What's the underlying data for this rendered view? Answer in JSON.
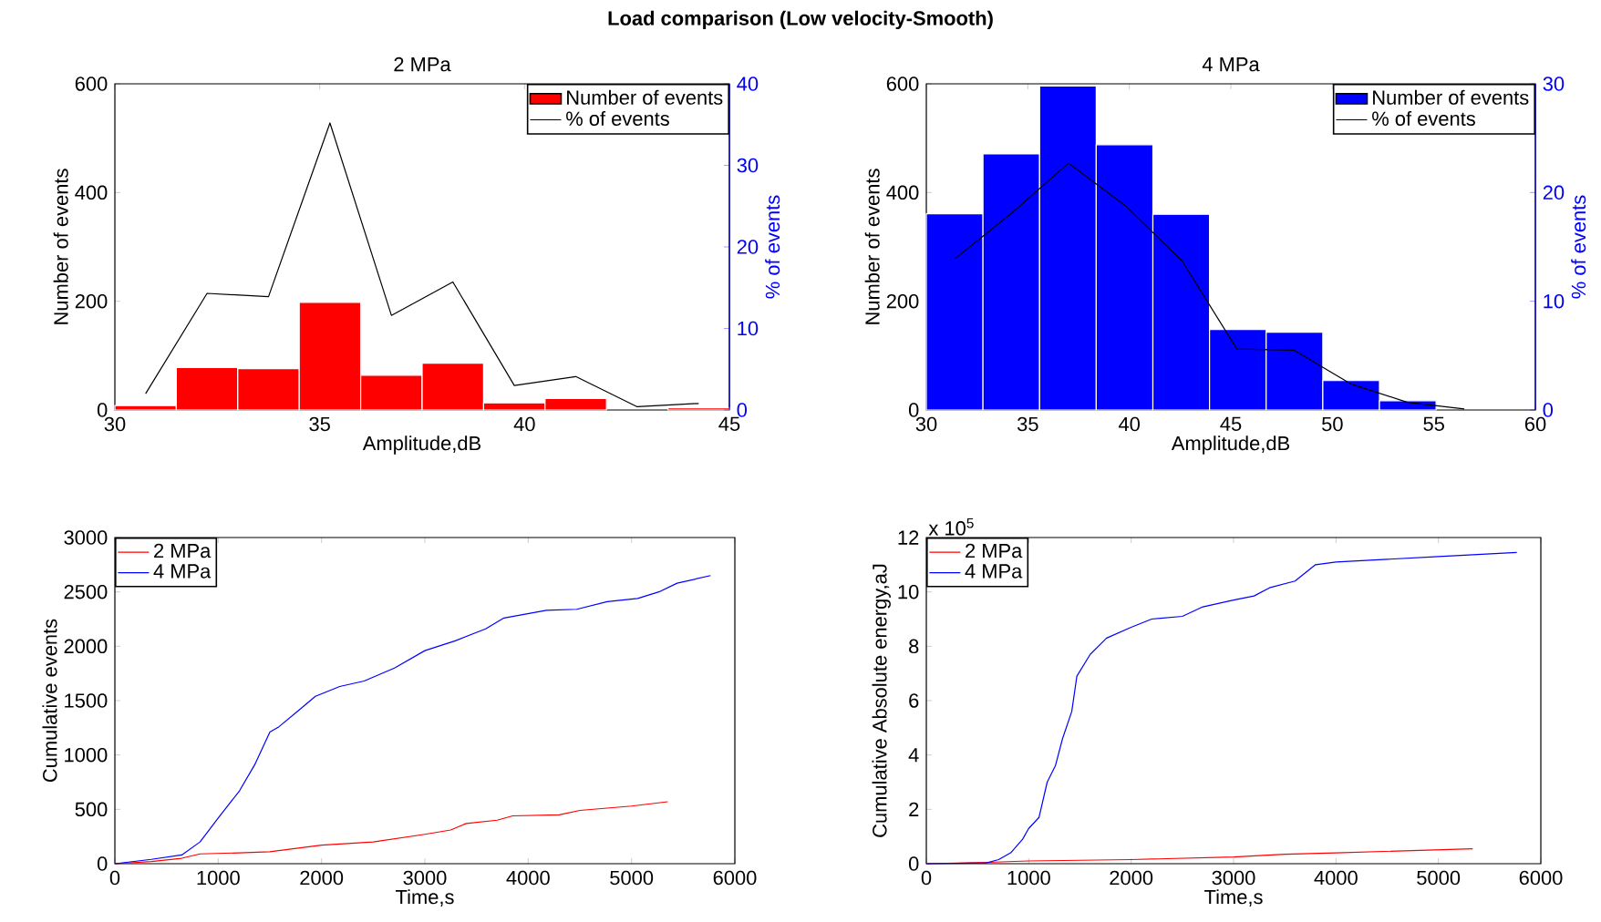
{
  "chart_data": [
    {
      "type": "histogram",
      "title": "2 MPa",
      "xlabel": "Amplitude,dB",
      "ylabel": "Number of events",
      "y2label": "% of events",
      "annotations": [
        "Load comparison (Low velocity-Smooth)"
      ],
      "bins": [
        30,
        31.5,
        33,
        34.5,
        36,
        37.5,
        39,
        40.5,
        42,
        43.5,
        45
      ],
      "xlim": [
        30,
        45
      ],
      "xticks": [
        30,
        35,
        40,
        45
      ],
      "ylim": [
        0,
        600
      ],
      "yticks": [
        0,
        200,
        400,
        600
      ],
      "y2lim": [
        0,
        40
      ],
      "y2ticks": [
        0,
        10,
        20,
        30,
        40
      ],
      "legend": "top right",
      "series": [
        {
          "name": "Number of events",
          "color": "#ff0000",
          "values": [
            8,
            78,
            76,
            198,
            64,
            86,
            13,
            21,
            null,
            4
          ]
        },
        {
          "name": "% of events",
          "type": "line",
          "axis": "y2",
          "color": "#000000",
          "x": [
            30.75,
            32.25,
            33.75,
            35.25,
            36.75,
            38.25,
            39.75,
            41.25,
            42.75,
            44.25
          ],
          "values": [
            2.0,
            14.3,
            13.9,
            35.2,
            11.6,
            15.7,
            3.0,
            4.1,
            0.4,
            0.8
          ]
        }
      ]
    },
    {
      "type": "histogram",
      "title": "4 MPa",
      "xlabel": "Amplitude,dB",
      "ylabel": "Number of events",
      "y2label": "% of events",
      "bins": [
        30,
        32.79,
        35.58,
        38.37,
        41.16,
        43.95,
        46.74,
        49.53,
        52.32,
        55.11,
        57.9
      ],
      "xlim": [
        30,
        60
      ],
      "xticks": [
        30,
        35,
        40,
        45,
        50,
        55,
        60
      ],
      "ylim": [
        0,
        600
      ],
      "yticks": [
        0,
        200,
        400,
        600
      ],
      "y2lim": [
        0,
        30
      ],
      "y2ticks": [
        0,
        10,
        20,
        30
      ],
      "legend": "top right",
      "series": [
        {
          "name": "Number of events",
          "color": "#0000ff",
          "values": [
            361,
            471,
            596,
            488,
            360,
            148,
            143,
            54,
            17,
            null
          ]
        },
        {
          "name": "% of events",
          "type": "line",
          "axis": "y2",
          "color": "#000000",
          "x": [
            31.4,
            34.2,
            37.0,
            39.8,
            42.6,
            45.3,
            48.1,
            50.9,
            53.7,
            56.5
          ],
          "values": [
            13.9,
            18.1,
            22.7,
            18.8,
            13.7,
            5.6,
            5.5,
            2.4,
            0.7,
            0.1
          ]
        }
      ]
    },
    {
      "type": "line",
      "xlabel": "Time,s",
      "ylabel": "Cumulative events",
      "xlim": [
        0,
        6000
      ],
      "xticks": [
        0,
        1000,
        2000,
        3000,
        4000,
        5000,
        6000
      ],
      "ylim": [
        0,
        3000
      ],
      "yticks": [
        0,
        500,
        1000,
        1500,
        2000,
        2500,
        3000
      ],
      "legend": "top left",
      "series": [
        {
          "name": "2 MPa",
          "color": "#ff0000",
          "x": [
            0,
            353,
            647,
            824,
            1200,
            1500,
            2000,
            2500,
            3000,
            3250,
            3400,
            3700,
            3850,
            4300,
            4500,
            5000,
            5350
          ],
          "values": [
            0,
            20,
            50,
            90,
            100,
            110,
            170,
            200,
            270,
            310,
            370,
            400,
            440,
            450,
            490,
            530,
            570
          ]
        },
        {
          "name": "4 MPa",
          "color": "#0000ff",
          "x": [
            0,
            353,
            647,
            824,
            1000,
            1206,
            1353,
            1500,
            1588,
            1765,
            1941,
            2176,
            2412,
            2706,
            3000,
            3294,
            3588,
            3765,
            4176,
            4470,
            4765,
            5059,
            5265,
            5441,
            5765
          ],
          "values": [
            0,
            40,
            80,
            200,
            420,
            670,
            910,
            1210,
            1260,
            1400,
            1540,
            1630,
            1680,
            1800,
            1960,
            2050,
            2160,
            2260,
            2330,
            2340,
            2410,
            2440,
            2500,
            2580,
            2650
          ]
        }
      ]
    },
    {
      "type": "line",
      "xlabel": "Time,s",
      "ylabel": "Cumulative Absolute energy,aJ",
      "annotations": [
        "x 10$^{5}$"
      ],
      "xlim": [
        0,
        6000
      ],
      "xticks": [
        0,
        1000,
        2000,
        3000,
        4000,
        5000,
        6000
      ],
      "ylim": [
        0,
        12
      ],
      "yticks": [
        0,
        2,
        4,
        6,
        8,
        10,
        12
      ],
      "legend": "top left",
      "series": [
        {
          "name": "2 MPa",
          "color": "#ff0000",
          "x": [
            0,
            600,
            1000,
            2000,
            3000,
            3500,
            4000,
            5335
          ],
          "values": [
            0,
            0.05,
            0.1,
            0.15,
            0.25,
            0.35,
            0.4,
            0.55
          ]
        },
        {
          "name": "4 MPa",
          "color": "#0000ff",
          "x": [
            0,
            588,
            706,
            824,
            940,
            1000,
            1100,
            1180,
            1260,
            1330,
            1420,
            1470,
            1600,
            1760,
            2000,
            2200,
            2500,
            2700,
            3000,
            3200,
            3350,
            3600,
            3800,
            4000,
            4500,
            5000,
            5765
          ],
          "values": [
            0,
            0.03,
            0.15,
            0.4,
            0.9,
            1.3,
            1.7,
            3.0,
            3.6,
            4.6,
            5.6,
            6.9,
            7.7,
            8.3,
            8.7,
            9.0,
            9.1,
            9.45,
            9.7,
            9.85,
            10.15,
            10.4,
            11.0,
            11.1,
            11.2,
            11.3,
            11.45
          ]
        }
      ]
    }
  ]
}
